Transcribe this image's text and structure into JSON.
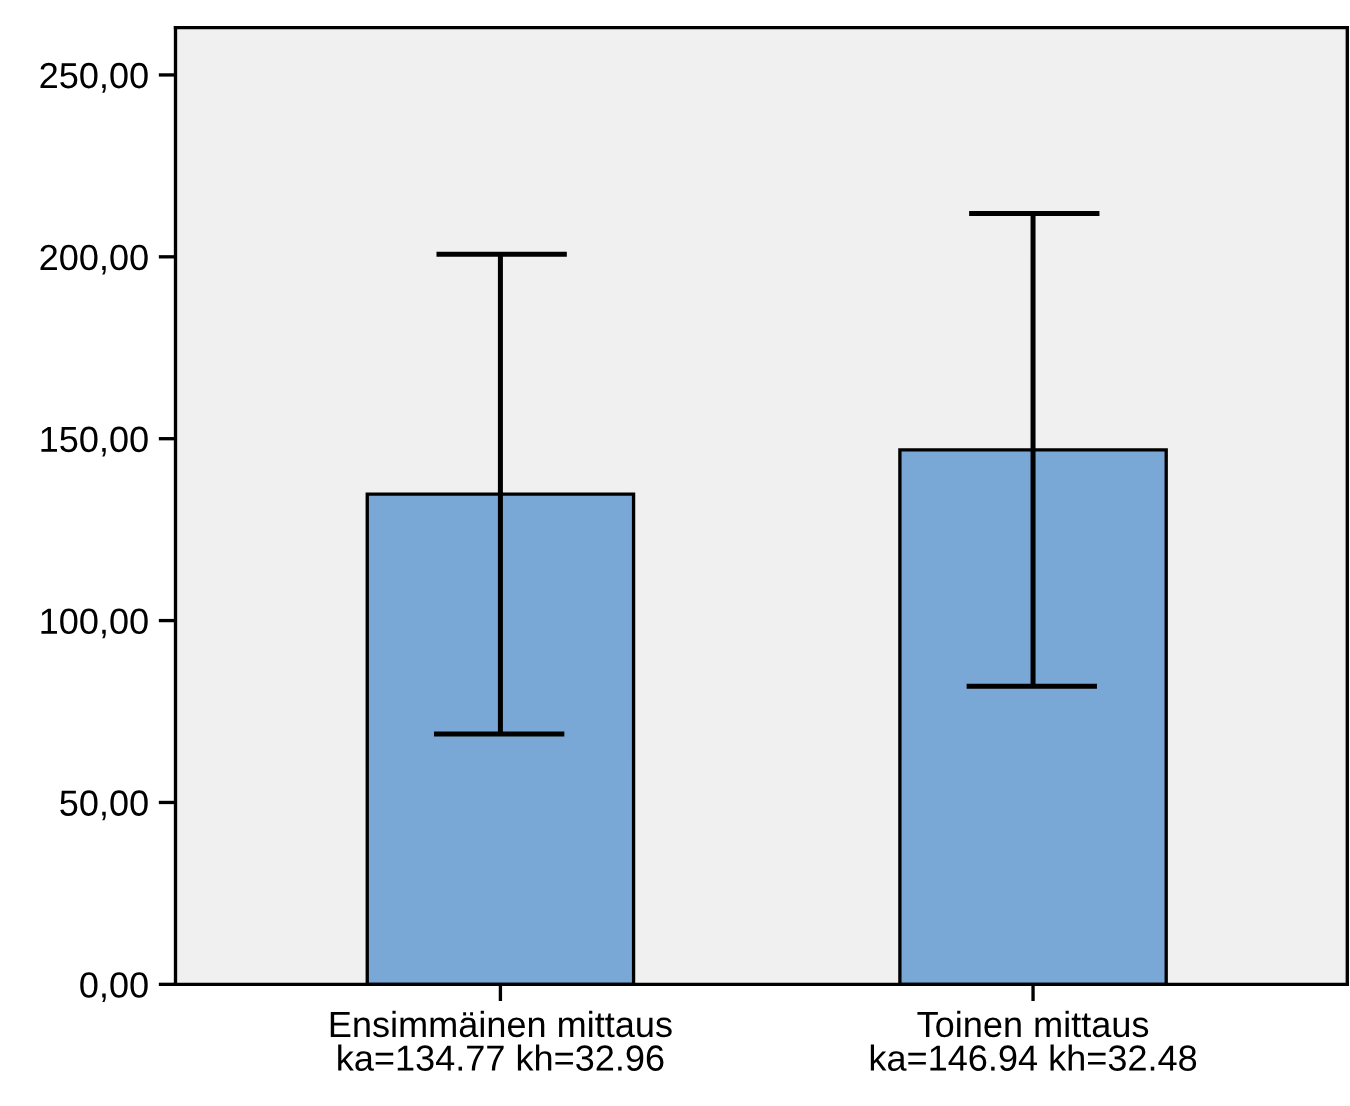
{
  "chart_data": {
    "type": "bar",
    "categories": [
      "Ensimmäinen mittaus\nka=134.77 kh=32.96",
      "Toinen mittaus\nka=146.94 kh=32.48"
    ],
    "values": [
      134.77,
      146.94
    ],
    "errors": [
      65.92,
      64.96
    ],
    "color": "#7aa8d6",
    "ylim": [
      0,
      263
    ],
    "yticks": [
      {
        "value": 0,
        "label": "0,00"
      },
      {
        "value": 50,
        "label": "50,00"
      },
      {
        "value": 100,
        "label": "100,00"
      },
      {
        "value": 150,
        "label": "150,00"
      },
      {
        "value": 200,
        "label": "200,00"
      },
      {
        "value": 250,
        "label": "250,00"
      }
    ],
    "grid": false
  }
}
